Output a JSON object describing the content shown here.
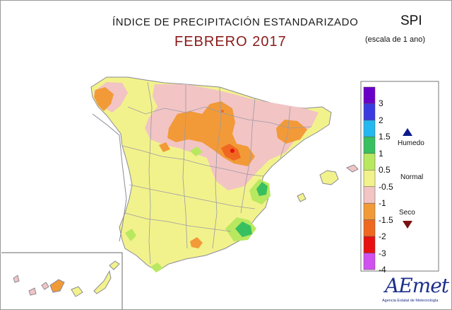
{
  "header": {
    "title": "ÍNDICE DE PRECIPITACIÓN ESTANDARIZADO",
    "subtitle": "FEBRERO 2017",
    "index": "SPI",
    "scale": "(escala de 1 ano)"
  },
  "legend": {
    "ticks": [
      "3",
      "2",
      "1.5",
      "1",
      "0.5",
      "-0.5",
      "-1",
      "-1.5",
      "-2",
      "-3",
      "-4"
    ],
    "humid_label": "Humedo",
    "normal_label": "Normal",
    "dry_label": "Seco",
    "colors": [
      "#6a00c8",
      "#3a3ae0",
      "#23b8f0",
      "#38c060",
      "#b8e860",
      "#f2f28c",
      "#f2c4c4",
      "#f29a38",
      "#f06820",
      "#e81010",
      "#d050f0"
    ]
  },
  "map": {
    "region": "Spain - mainland, Balearic Islands, Canary Islands",
    "background_class_color": "#f2f28c",
    "border_color": "#9a9aa6"
  },
  "logo": {
    "name": "AEmet",
    "tagline": "Agencia Estatal de Meteorología"
  }
}
